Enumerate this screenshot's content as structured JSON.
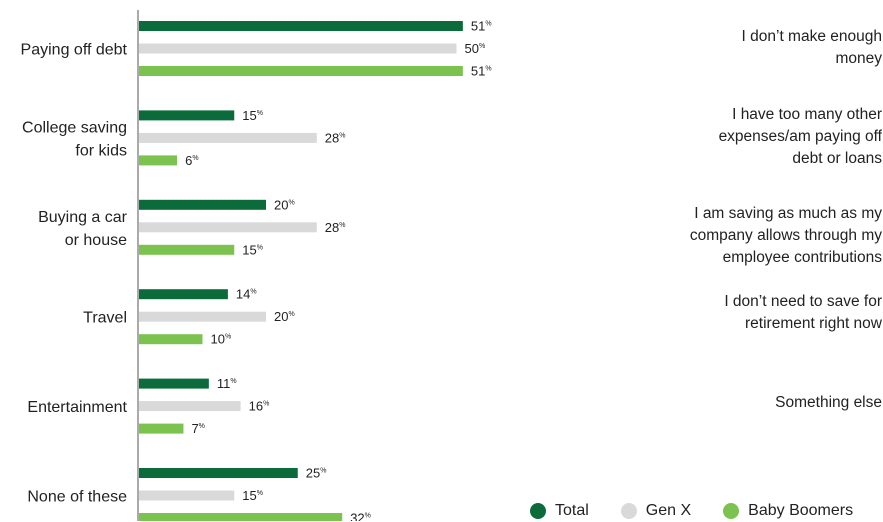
{
  "chart_data": {
    "type": "bar",
    "orientation": "horizontal",
    "categories": [
      [
        "Paying off debt"
      ],
      [
        "College saving",
        "for kids"
      ],
      [
        "Buying a car",
        "or house"
      ],
      [
        "Travel"
      ],
      [
        "Entertainment"
      ],
      [
        "None of these"
      ]
    ],
    "series": [
      {
        "name": "Total",
        "color": "#0b6b3a",
        "values": [
          51,
          15,
          20,
          14,
          11,
          25
        ]
      },
      {
        "name": "Gen X",
        "color": "#d9d9d9",
        "values": [
          50,
          28,
          28,
          20,
          16,
          15
        ]
      },
      {
        "name": "Baby Boomers",
        "color": "#7cc24f",
        "values": [
          51,
          6,
          15,
          10,
          7,
          32
        ]
      }
    ],
    "value_suffix": "%",
    "grid": false,
    "legend_position": "bottom-right"
  },
  "reasons": [
    {
      "lines": [
        "I don’t make enough",
        "money"
      ]
    },
    {
      "lines": [
        "I have too many other",
        "expenses/am paying off",
        "debt or loans"
      ]
    },
    {
      "lines": [
        "I am saving as much as my",
        "company allows through my",
        "employee contributions"
      ]
    },
    {
      "lines": [
        "I don’t need to save for",
        "retirement right now"
      ]
    },
    {
      "lines": [
        "Something else"
      ]
    }
  ],
  "legend": [
    {
      "label": "Total",
      "color": "#0b6b3a"
    },
    {
      "label": "Gen X",
      "color": "#d9d9d9"
    },
    {
      "label": "Baby Boomers",
      "color": "#7cc24f"
    }
  ]
}
